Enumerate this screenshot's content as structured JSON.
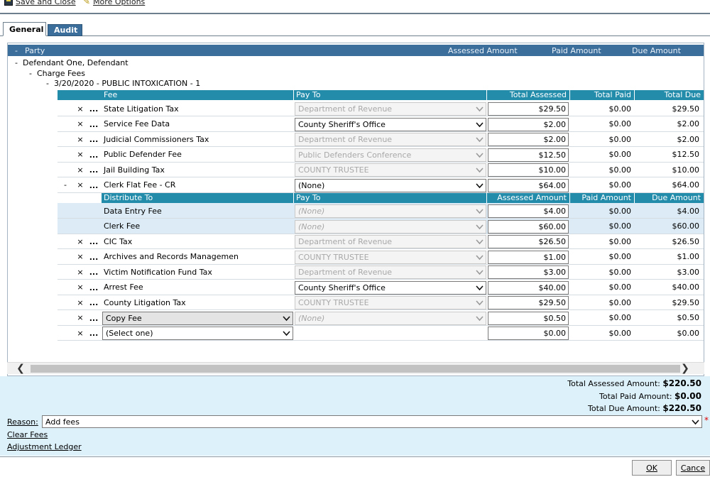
{
  "toolbar": {
    "save_close": "Save and Close",
    "more_options": "More Options"
  },
  "tabs": [
    {
      "label": "General"
    },
    {
      "label": "Audit"
    }
  ],
  "party_header": {
    "party": "Party",
    "assessed": "Assessed Amount",
    "paid": "Paid Amount",
    "due": "Due Amount",
    "toggle": "-"
  },
  "tree": {
    "defendant": "Defendant One, Defendant",
    "charge_fees": "Charge Fees",
    "charge": "3/20/2020 - PUBLIC INTOXICATION - 1",
    "toggle": "-"
  },
  "grid_headers": {
    "fee": "Fee",
    "pay_to": "Pay To",
    "total_assessed": "Total Assessed",
    "total_paid": "Total Paid",
    "total_due": "Total Due"
  },
  "sub_headers": {
    "distribute_to": "Distribute To",
    "pay_to": "Pay To",
    "assessed": "Assessed Amount",
    "paid": "Paid Amount",
    "due": "Due Amount"
  },
  "row_marks": {
    "remove": "×",
    "more": "...",
    "collapse": "-"
  },
  "fees": [
    {
      "name": "State Litigation Tax",
      "pay_to": "Department of Revenue",
      "assessed": "$29.50",
      "paid": "$0.00",
      "due": "$29.50"
    },
    {
      "name": "Service Fee Data",
      "pay_to": "County Sheriff's Office",
      "assessed": "$2.00",
      "paid": "$0.00",
      "due": "$2.00"
    },
    {
      "name": "Judicial Commissioners Tax",
      "pay_to": "Department of Revenue",
      "assessed": "$2.00",
      "paid": "$0.00",
      "due": "$2.00"
    },
    {
      "name": "Public Defender Fee",
      "pay_to": "Public Defenders Conference",
      "assessed": "$12.50",
      "paid": "$0.00",
      "due": "$12.50"
    },
    {
      "name": "Jail Building Tax",
      "pay_to": "COUNTY TRUSTEE",
      "assessed": "$10.00",
      "paid": "$0.00",
      "due": "$10.00"
    },
    {
      "name": "Clerk Flat Fee - CR",
      "pay_to": "(None)",
      "assessed": "$64.00",
      "paid": "$0.00",
      "due": "$64.00"
    }
  ],
  "distributions": [
    {
      "name": "Data Entry Fee",
      "pay_to": "(None)",
      "assessed": "$4.00",
      "paid": "$0.00",
      "due": "$4.00"
    },
    {
      "name": "Clerk Fee",
      "pay_to": "(None)",
      "assessed": "$60.00",
      "paid": "$0.00",
      "due": "$60.00"
    }
  ],
  "fees2": [
    {
      "name": "CIC Tax",
      "pay_to": "Department of Revenue",
      "assessed": "$26.50",
      "paid": "$0.00",
      "due": "$26.50"
    },
    {
      "name": "Archives and Records Managemen",
      "pay_to": "COUNTY TRUSTEE",
      "assessed": "$1.00",
      "paid": "$0.00",
      "due": "$1.00"
    },
    {
      "name": "Victim Notification Fund Tax",
      "pay_to": "Department of Revenue",
      "assessed": "$3.00",
      "paid": "$0.00",
      "due": "$3.00"
    },
    {
      "name": "Arrest Fee",
      "pay_to": "County Sheriff's Office",
      "assessed": "$40.00",
      "paid": "$0.00",
      "due": "$40.00"
    },
    {
      "name": "County Litigation Tax",
      "pay_to": "COUNTY TRUSTEE",
      "assessed": "$29.50",
      "paid": "$0.00",
      "due": "$29.50"
    },
    {
      "name": "Copy Fee",
      "pay_to": "(None)",
      "assessed": "$0.50",
      "paid": "$0.00",
      "due": "$0.50"
    },
    {
      "name": "(Select one)",
      "pay_to": "",
      "assessed": "$0.00",
      "paid": "$0.00",
      "due": "$0.00"
    }
  ],
  "scroll": {
    "left": "❮",
    "right": "❯"
  },
  "totals": {
    "assessed_label": "Total Assessed Amount:",
    "assessed_value": "$220.50",
    "paid_label": "Total Paid Amount:",
    "paid_value": "$0.00",
    "due_label": "Total Due Amount:",
    "due_value": "$220.50"
  },
  "reason": {
    "label": "Reason:",
    "value": "Add fees",
    "required_mark": "*"
  },
  "links": {
    "clear_fees": "Clear Fees",
    "adjustment_ledger": "Adjustment Ledger"
  },
  "buttons": {
    "ok": "OK",
    "cancel": "Cance"
  }
}
